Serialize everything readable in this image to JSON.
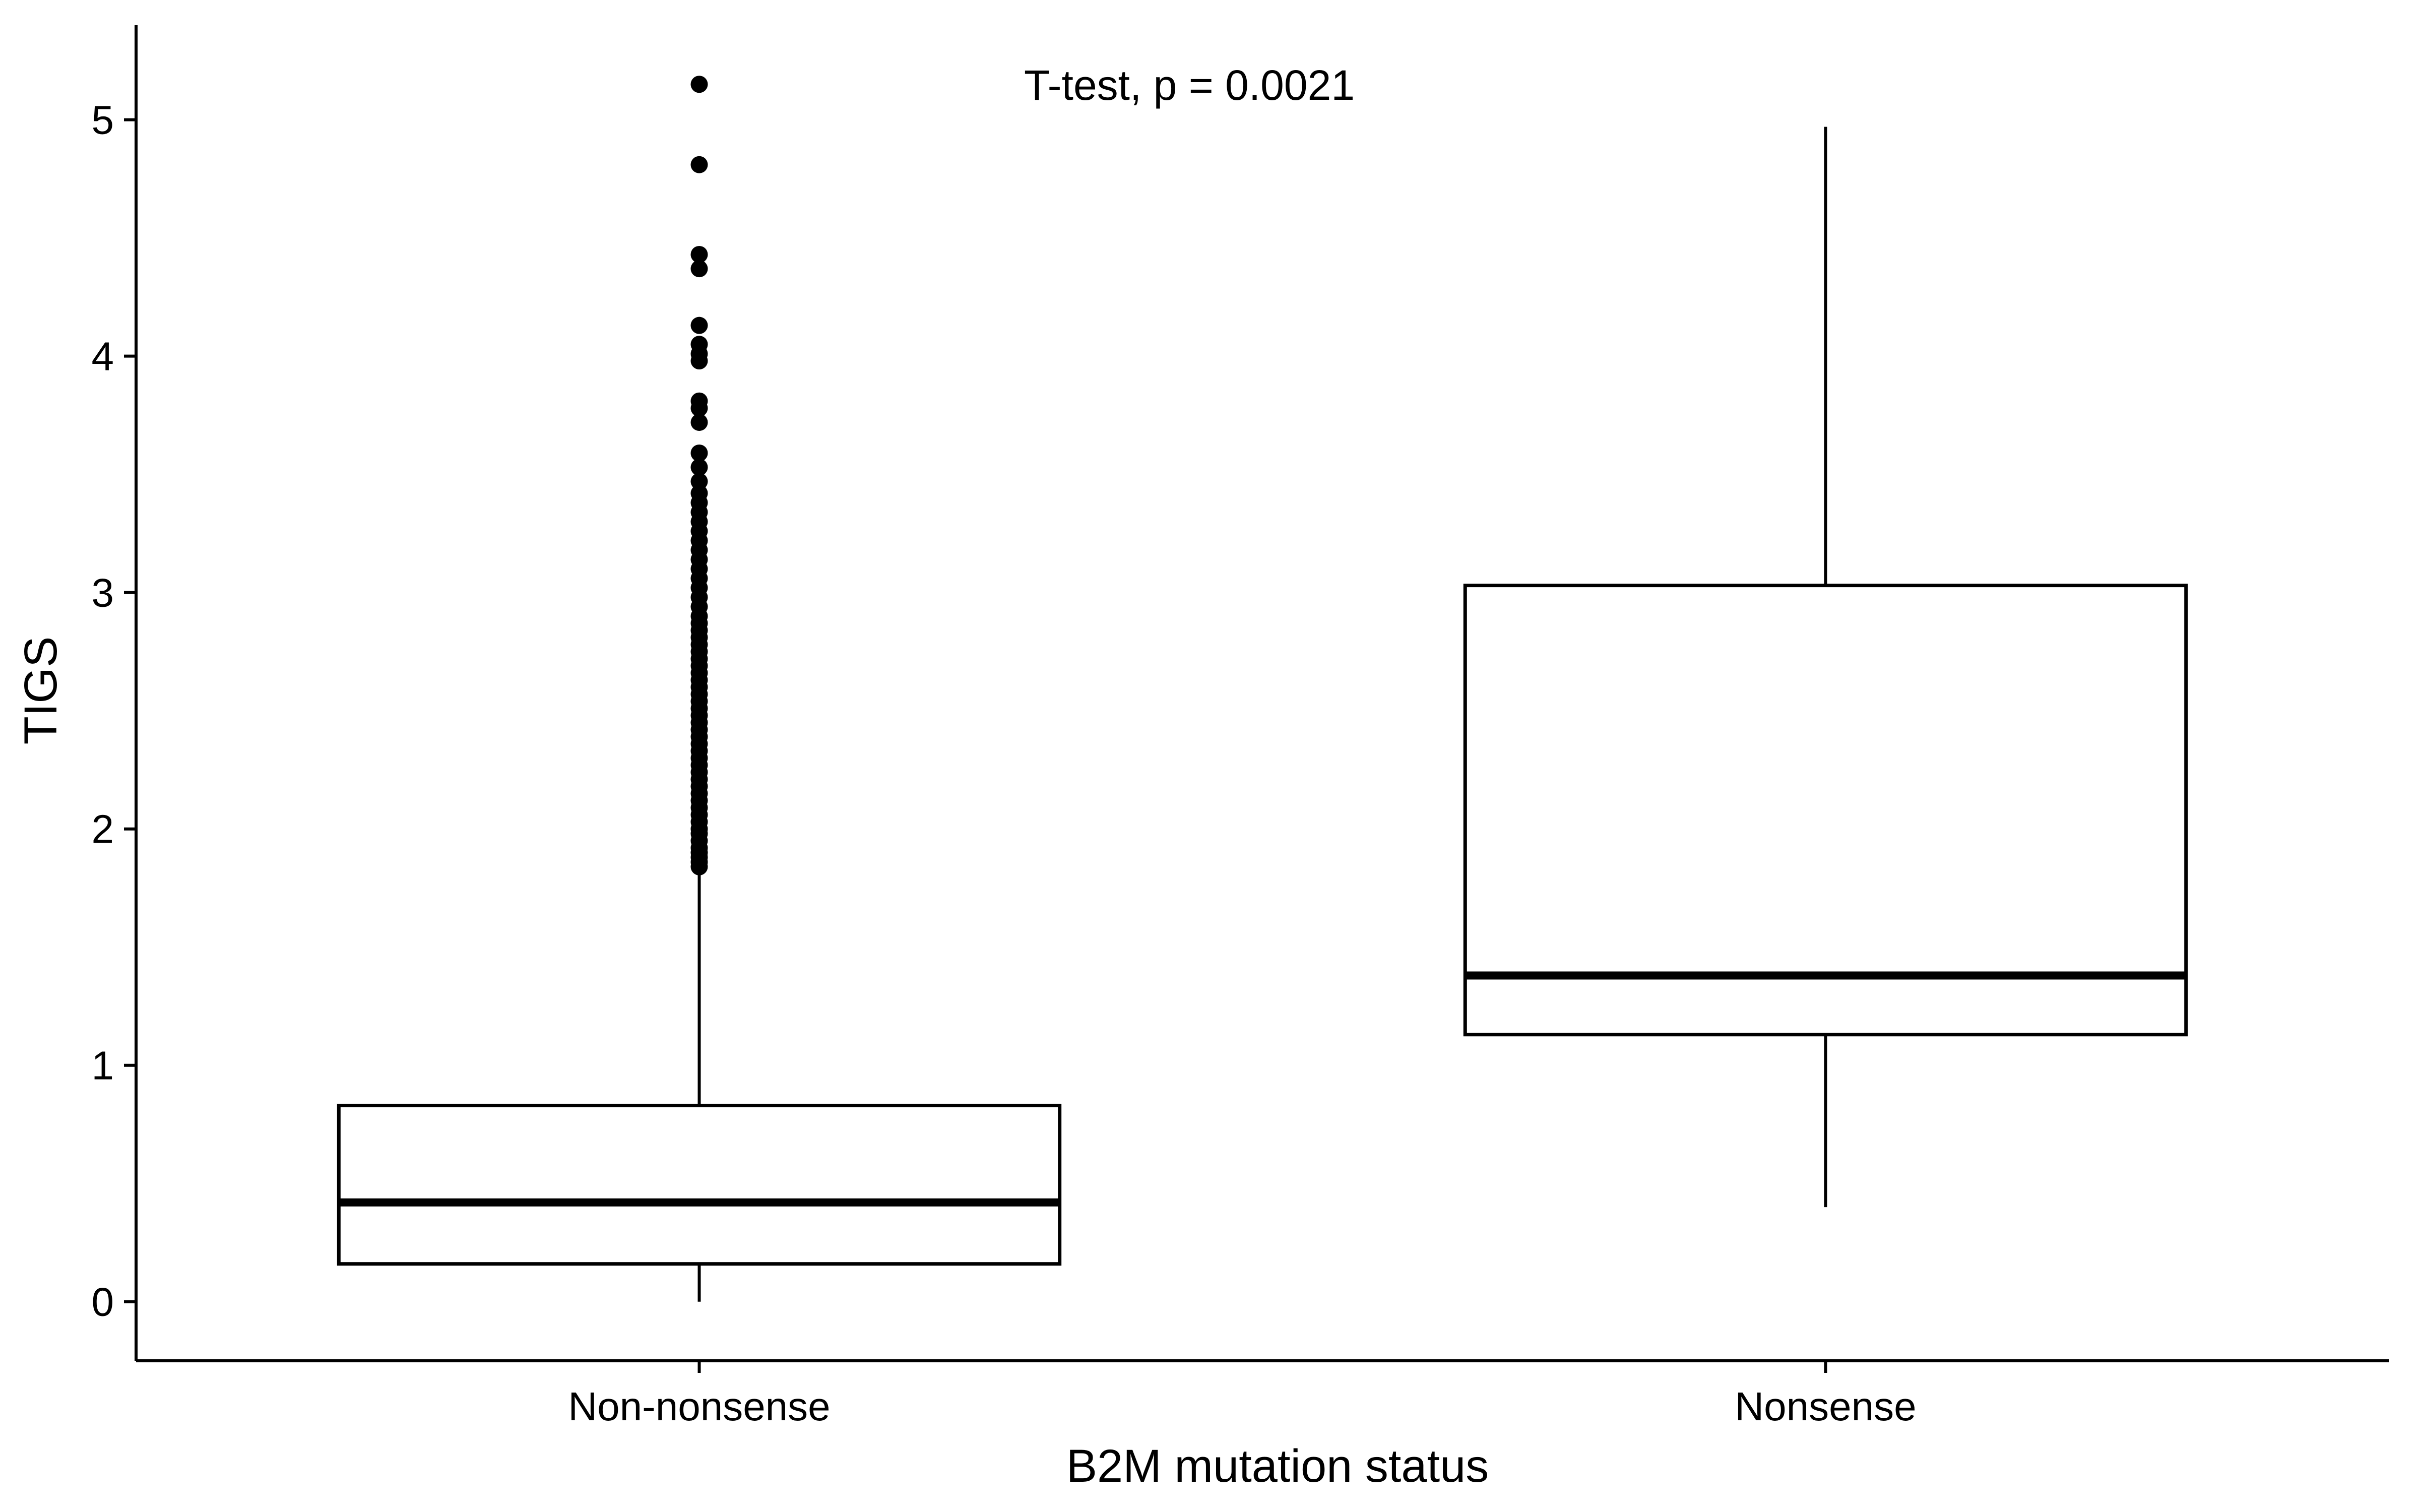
{
  "chart_data": {
    "type": "boxplot",
    "xlabel": "B2M mutation status",
    "ylabel": "TIGS",
    "categories": [
      "Non-nonsense",
      "Nonsense"
    ],
    "ylim": [
      -0.25,
      5.4
    ],
    "yticks": [
      0,
      1,
      2,
      3,
      4,
      5
    ],
    "grid": false,
    "legend": "none",
    "annotation": "T-test, p = 0.0021",
    "boxes": [
      {
        "category": "Non-nonsense",
        "whisker_low": 0.0,
        "q1": 0.16,
        "median": 0.42,
        "q3": 0.83,
        "whisker_high": 1.82,
        "outliers": [
          1.84,
          1.86,
          1.88,
          1.9,
          1.92,
          1.95,
          1.98,
          2.0,
          2.03,
          2.06,
          2.09,
          2.12,
          2.15,
          2.18,
          2.21,
          2.24,
          2.27,
          2.3,
          2.33,
          2.36,
          2.39,
          2.42,
          2.45,
          2.48,
          2.51,
          2.54,
          2.57,
          2.6,
          2.63,
          2.66,
          2.69,
          2.72,
          2.75,
          2.78,
          2.81,
          2.84,
          2.87,
          2.9,
          2.94,
          2.98,
          3.02,
          3.06,
          3.1,
          3.14,
          3.18,
          3.22,
          3.26,
          3.3,
          3.34,
          3.38,
          3.42,
          3.47,
          3.53,
          3.59,
          3.72,
          3.78,
          3.81,
          3.98,
          4.01,
          4.05,
          4.13,
          4.37,
          4.43,
          4.81,
          5.15
        ]
      },
      {
        "category": "Nonsense",
        "whisker_low": 0.4,
        "q1": 1.13,
        "median": 1.38,
        "q3": 3.03,
        "whisker_high": 4.97,
        "outliers": []
      }
    ]
  }
}
